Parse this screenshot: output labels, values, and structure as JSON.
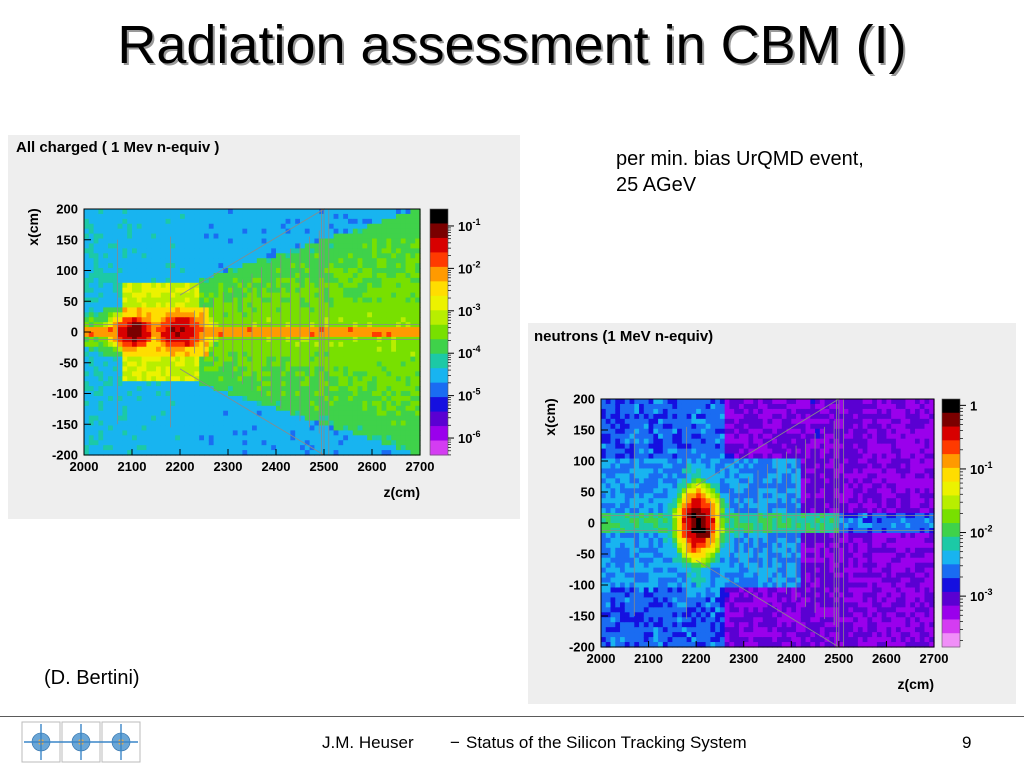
{
  "slide": {
    "title": "Radiation assessment in CBM (I)",
    "note_line1": "per min. bias UrQMD event,",
    "note_line2": "25 AGeV",
    "credit": "(D. Bertini)"
  },
  "footer": {
    "author": "J.M. Heuser",
    "separator": "−",
    "subtitle": "Status of the Silicon Tracking System",
    "page": "9"
  },
  "logo": {
    "icon": "cbm-detector-logo-icon"
  },
  "chart_data": [
    {
      "type": "heatmap",
      "title": "All charged ( 1 Mev n-equiv )",
      "xlabel": "z(cm)",
      "ylabel": "x(cm)",
      "xlim": [
        2000,
        2700
      ],
      "ylim": [
        -200,
        200
      ],
      "x_ticks": [
        "2000",
        "2100",
        "2200",
        "2300",
        "2400",
        "2500",
        "2600",
        "2700"
      ],
      "y_ticks": [
        "200",
        "150",
        "100",
        "50",
        "0",
        "-50",
        "-100",
        "-150",
        "-200"
      ],
      "z_scale": "log",
      "z_ticks": [
        {
          "base": "10",
          "exp": "-1"
        },
        {
          "base": "10",
          "exp": "-2"
        },
        {
          "base": "10",
          "exp": "-3"
        },
        {
          "base": "10",
          "exp": "-4"
        },
        {
          "base": "10",
          "exp": "-5"
        },
        {
          "base": "10",
          "exp": "-6"
        }
      ],
      "colorscale": [
        "#000000",
        "#7a0000",
        "#d80000",
        "#ff3a00",
        "#ff9a00",
        "#ffdd00",
        "#ecf200",
        "#b8ee00",
        "#78e000",
        "#3fd24a",
        "#1cc9a6",
        "#18b4f0",
        "#1a6cf2",
        "#1510e0",
        "#5a00d2",
        "#9a00ec",
        "#d43cf2"
      ],
      "colorscale_range": [
        -6.4,
        -0.6
      ],
      "z_map": "log10 flux by region: target core ~ -1, beam line ~ -2, mid cone ~ -3.5, outer ~ -4.5, detector planes ~ -3"
    },
    {
      "type": "heatmap",
      "title": "neutrons (1 MeV n-equiv)",
      "xlabel": "z(cm)",
      "ylabel": "x(cm)",
      "xlim": [
        2000,
        2700
      ],
      "ylim": [
        -200,
        200
      ],
      "x_ticks": [
        "2000",
        "2100",
        "2200",
        "2300",
        "2400",
        "2500",
        "2600",
        "2700"
      ],
      "y_ticks": [
        "200",
        "150",
        "100",
        "50",
        "0",
        "-50",
        "-100",
        "-150",
        "-200"
      ],
      "z_scale": "log",
      "z_ticks": [
        {
          "base": "1",
          "exp": ""
        },
        {
          "base": "10",
          "exp": "-1"
        },
        {
          "base": "10",
          "exp": "-2"
        },
        {
          "base": "10",
          "exp": "-3"
        }
      ],
      "colorscale": [
        "#000000",
        "#7a0000",
        "#d80000",
        "#ff3a00",
        "#ff9a00",
        "#ffdd00",
        "#ecf200",
        "#b8ee00",
        "#78e000",
        "#3fd24a",
        "#1cc9a6",
        "#18b4f0",
        "#1a6cf2",
        "#1510e0",
        "#5a00d2",
        "#9a00ec",
        "#d43cf2",
        "#f08ef8"
      ],
      "colorscale_range": [
        -3.8,
        0.1
      ],
      "z_map": "log10 flux by region: target core ~ 0, diamond around target ~ -1.5, beam tube ~ -2, outer shell ~ -2.6, far zone ~ -3.3"
    }
  ]
}
